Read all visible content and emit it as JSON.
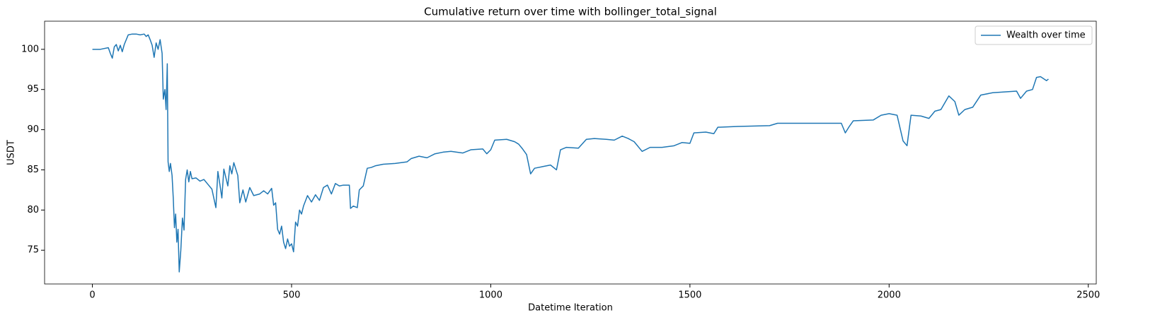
{
  "chart_data": {
    "type": "line",
    "title": "Cumulative return over time with bollinger_total_signal",
    "x_label": "Datetime Iteration",
    "y_label": "USDT",
    "x": [
      0,
      20,
      40,
      45,
      50,
      55,
      60,
      65,
      70,
      75,
      80,
      90,
      100,
      110,
      120,
      130,
      135,
      140,
      145,
      150,
      155,
      160,
      165,
      170,
      175,
      178,
      182,
      185,
      188,
      190,
      193,
      196,
      200,
      203,
      206,
      209,
      212,
      215,
      218,
      222,
      226,
      230,
      234,
      238,
      242,
      246,
      250,
      260,
      270,
      280,
      290,
      300,
      310,
      315,
      320,
      325,
      330,
      340,
      345,
      350,
      355,
      365,
      370,
      378,
      385,
      395,
      405,
      420,
      430,
      440,
      450,
      455,
      460,
      465,
      470,
      475,
      480,
      485,
      490,
      495,
      500,
      505,
      510,
      515,
      520,
      525,
      530,
      540,
      550,
      560,
      570,
      580,
      590,
      600,
      610,
      620,
      630,
      645,
      648,
      655,
      665,
      670,
      680,
      690,
      700,
      710,
      730,
      760,
      790,
      800,
      820,
      840,
      860,
      880,
      900,
      930,
      950,
      980,
      990,
      1000,
      1010,
      1040,
      1060,
      1070,
      1080,
      1090,
      1100,
      1110,
      1130,
      1150,
      1165,
      1175,
      1190,
      1220,
      1240,
      1260,
      1290,
      1310,
      1330,
      1345,
      1360,
      1380,
      1400,
      1430,
      1460,
      1480,
      1500,
      1510,
      1540,
      1560,
      1570,
      1620,
      1700,
      1720,
      1880,
      1890,
      1900,
      1910,
      1960,
      1980,
      2000,
      2020,
      2035,
      2045,
      2055,
      2080,
      2100,
      2115,
      2130,
      2150,
      2165,
      2175,
      2190,
      2210,
      2230,
      2260,
      2290,
      2320,
      2330,
      2345,
      2360,
      2370,
      2380,
      2395,
      2400
    ],
    "series": [
      {
        "name": "Wealth over time",
        "color": "#1f77b4",
        "values": [
          100,
          100,
          100.2,
          99.5,
          98.9,
          100.3,
          100.6,
          99.8,
          100.5,
          99.7,
          100.6,
          101.8,
          101.9,
          101.9,
          101.8,
          101.9,
          101.6,
          101.8,
          101.2,
          100.5,
          99.0,
          100.8,
          100.0,
          101.2,
          99.5,
          93.8,
          95.0,
          92.5,
          98.2,
          86.0,
          84.8,
          85.8,
          84.3,
          81.5,
          77.8,
          79.5,
          76.0,
          77.6,
          72.3,
          75.0,
          79.0,
          77.5,
          83.8,
          85.0,
          83.5,
          84.8,
          83.9,
          84.0,
          83.6,
          83.8,
          83.2,
          82.6,
          80.3,
          84.8,
          83.2,
          81.5,
          85.1,
          83.0,
          85.5,
          84.5,
          85.9,
          84.3,
          80.9,
          82.5,
          81.0,
          82.8,
          81.8,
          82.0,
          82.4,
          82.0,
          82.7,
          80.6,
          80.9,
          77.6,
          77.0,
          78.0,
          76.0,
          75.2,
          76.4,
          75.5,
          75.8,
          74.8,
          78.5,
          78.0,
          80.0,
          79.5,
          80.5,
          81.8,
          81.0,
          81.9,
          81.2,
          82.8,
          83.1,
          82.0,
          83.3,
          83.0,
          83.1,
          83.1,
          80.2,
          80.5,
          80.3,
          82.5,
          83.0,
          85.2,
          85.3,
          85.5,
          85.7,
          85.8,
          86.0,
          86.4,
          86.7,
          86.5,
          87.0,
          87.2,
          87.3,
          87.1,
          87.5,
          87.6,
          87.0,
          87.5,
          88.7,
          88.8,
          88.5,
          88.2,
          87.6,
          86.9,
          84.5,
          85.2,
          85.4,
          85.6,
          85.0,
          87.5,
          87.8,
          87.7,
          88.8,
          88.9,
          88.8,
          88.7,
          89.2,
          88.9,
          88.5,
          87.3,
          87.8,
          87.8,
          88.0,
          88.4,
          88.3,
          89.6,
          89.7,
          89.5,
          90.3,
          90.4,
          90.5,
          90.8,
          90.8,
          89.6,
          90.4,
          91.1,
          91.2,
          91.8,
          92.0,
          91.8,
          88.6,
          88.0,
          91.8,
          91.7,
          91.4,
          92.3,
          92.5,
          94.2,
          93.5,
          91.8,
          92.5,
          92.8,
          94.3,
          94.6,
          94.7,
          94.8,
          93.9,
          94.8,
          95.0,
          96.5,
          96.6,
          96.1,
          96.3
        ]
      }
    ],
    "xlim": [
      -120,
      2520
    ],
    "ylim": [
      70.8,
      103.5
    ],
    "xticks": [
      0,
      500,
      1000,
      1500,
      2000,
      2500
    ],
    "yticks": [
      75,
      80,
      85,
      90,
      95,
      100
    ],
    "legend": "upper right"
  }
}
